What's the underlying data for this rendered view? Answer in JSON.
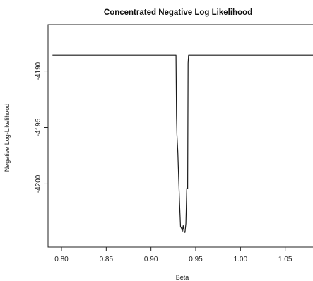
{
  "chart_data": {
    "type": "line",
    "title": "Concentrated Negative Log Likelihood",
    "xlabel": "Beta",
    "ylabel": "Negative Log-Likelihood",
    "xlim": [
      0.785,
      1.085
    ],
    "ylim": [
      -4205.6,
      -4185.9
    ],
    "x_ticks": [
      0.8,
      0.85,
      0.9,
      0.95,
      1.0,
      1.05
    ],
    "x_tick_labels": [
      "0.80",
      "0.85",
      "0.90",
      "0.95",
      "1.00",
      "1.05"
    ],
    "y_ticks": [
      -4190,
      -4195,
      -4200
    ],
    "y_tick_labels": [
      "-4190",
      "-4195",
      "-4200"
    ],
    "grid": false,
    "legend": "none",
    "color": "#1a1a1a",
    "series": [
      {
        "x": [
          0.79,
          0.928,
          0.9285,
          0.929,
          0.93,
          0.931,
          0.932,
          0.933,
          0.934,
          0.935,
          0.936,
          0.937,
          0.938,
          0.939,
          0.94,
          0.941,
          0.9415,
          0.942,
          1.085
        ],
        "y": [
          -4188.6,
          -4188.6,
          -4194.0,
          -4195.6,
          -4197.2,
          -4199.5,
          -4201.8,
          -4203.8,
          -4203.9,
          -4204.2,
          -4203.7,
          -4204.2,
          -4204.3,
          -4203.5,
          -4200.4,
          -4200.4,
          -4189.3,
          -4188.6,
          -4188.6
        ]
      }
    ]
  }
}
